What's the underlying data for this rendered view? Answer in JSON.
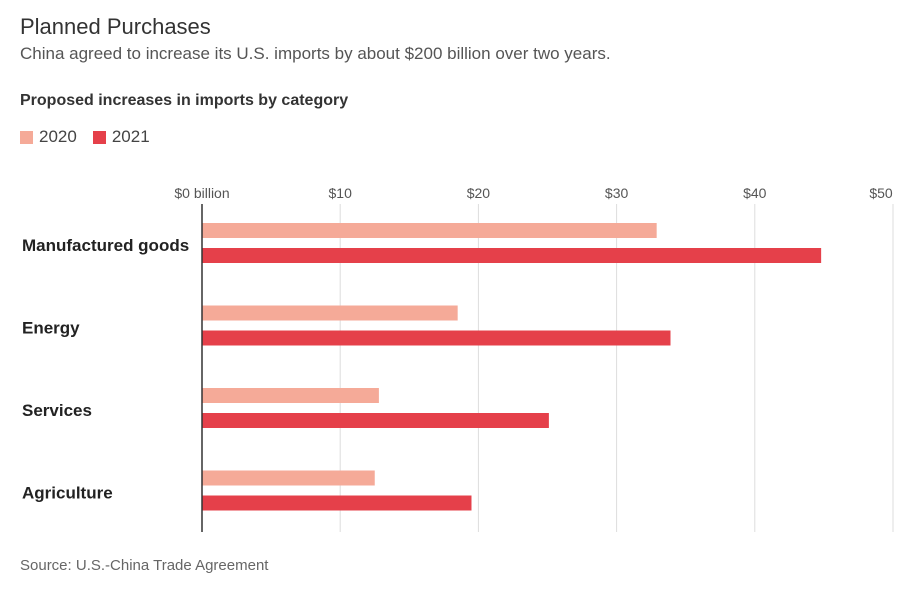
{
  "title": "Planned Purchases",
  "subtitle": "China agreed to increase its U.S. imports by about $200 billion over two years.",
  "chart_heading": "Proposed increases in imports by category",
  "source": "Source: U.S.-China Trade Agreement",
  "colors": {
    "2020": "#f5aa98",
    "2021": "#e5404a",
    "grid": "#dddddd",
    "axis": "#333333"
  },
  "chart_data": {
    "type": "bar",
    "orientation": "horizontal",
    "categories": [
      "Manufactured goods",
      "Energy",
      "Services",
      "Agriculture"
    ],
    "series": [
      {
        "name": "2020",
        "values": [
          32.9,
          18.5,
          12.8,
          12.5
        ]
      },
      {
        "name": "2021",
        "values": [
          44.8,
          33.9,
          25.1,
          19.5
        ]
      }
    ],
    "xticks": [
      0,
      10,
      20,
      30,
      40,
      50
    ],
    "xtick_labels": [
      "$0 billion",
      "$10",
      "$20",
      "$30",
      "$40",
      "$50"
    ],
    "xlim": [
      0,
      50
    ],
    "grid": true,
    "legend_position": "top-left"
  }
}
